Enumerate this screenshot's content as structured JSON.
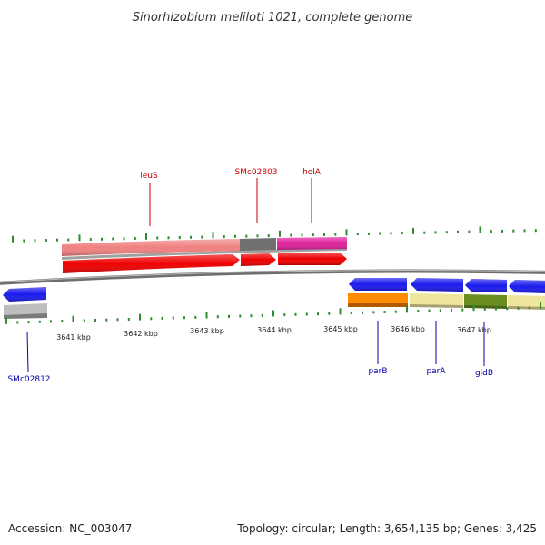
{
  "title": "Sinorhizobium meliloti 1021, complete genome",
  "footer": {
    "accession": "Accession: NC_003047",
    "summary": "Topology: circular; Length: 3,654,135 bp; Genes: 3,425"
  },
  "colors": {
    "backbone": "#888888",
    "tick": "#2e8b2e",
    "forward_label": "#cc0000",
    "reverse_label": "#0000aa"
  },
  "scale_labels": [
    "3641 kbp",
    "3642 kbp",
    "3643 kbp",
    "3644 kbp",
    "3645 kbp",
    "3646 kbp",
    "3647 kbp"
  ],
  "gene_labels": {
    "leuS": "leuS",
    "SMc02803": "SMc02803",
    "holA": "holA",
    "SMc02812": "SMc02812",
    "parB": "parB",
    "parA": "parA",
    "gidB": "gidB"
  }
}
